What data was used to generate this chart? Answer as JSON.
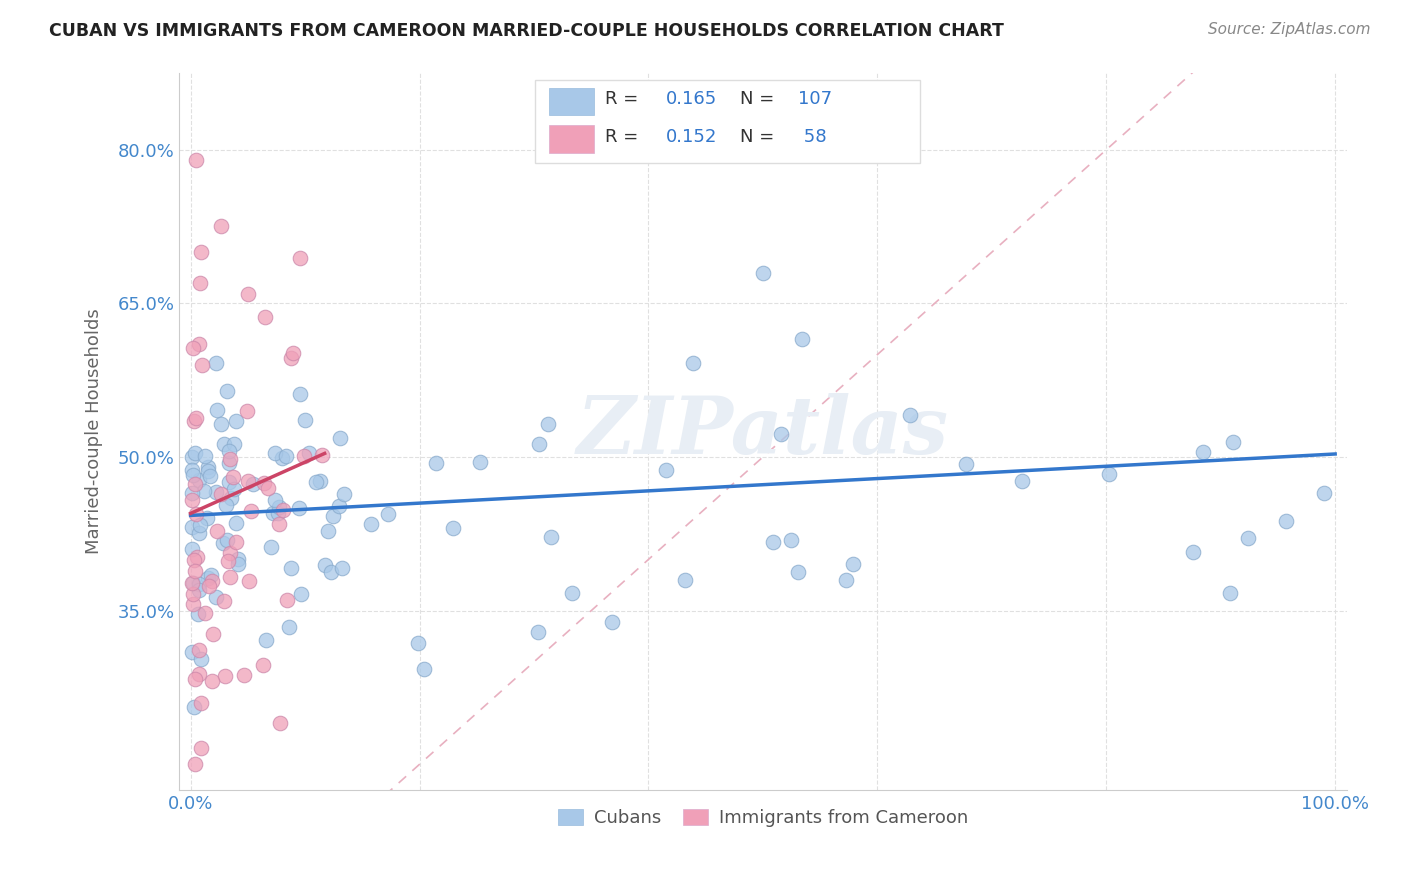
{
  "title": "CUBAN VS IMMIGRANTS FROM CAMEROON MARRIED-COUPLE HOUSEHOLDS CORRELATION CHART",
  "source": "Source: ZipAtlas.com",
  "ylabel": "Married-couple Households",
  "cubans_R": 0.165,
  "cubans_N": 107,
  "cameroon_R": 0.152,
  "cameroon_N": 58,
  "blue_color": "#a8c8e8",
  "pink_color": "#f0a0b8",
  "blue_line_color": "#3377cc",
  "pink_line_color": "#cc4466",
  "diagonal_color": "#cccccc",
  "background_color": "#ffffff",
  "watermark": "ZIPatlas",
  "tick_color": "#4488cc",
  "label_color": "#666666",
  "title_color": "#222222",
  "source_color": "#888888",
  "legend_border_color": "#dddddd",
  "grid_color": "#e0e0e0"
}
